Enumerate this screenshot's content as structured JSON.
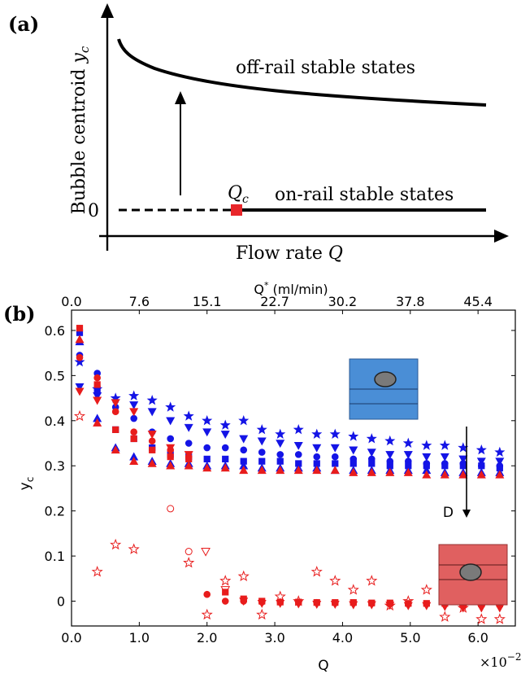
{
  "chart_data": [
    {
      "type": "line",
      "panel_label": "(a)",
      "xlabel": "Flow rate",
      "xlabel_symbol": "Q",
      "ylabel": "Bubble centroid",
      "ylabel_symbol": "y",
      "ylabel_subscript": "c",
      "y_zero_label": "0",
      "critical_label": "Q",
      "critical_subscript": "c",
      "annotations": [
        "off-rail stable states",
        "on-rail stable states"
      ],
      "colors": {
        "marker": "#e8262a",
        "line": "#000000"
      }
    },
    {
      "type": "scatter",
      "panel_label": "(b)",
      "xlabel": "Q",
      "x_multiplier": "×10",
      "x_multiplier_exp": "−2",
      "ylabel": "y",
      "ylabel_subscript": "c",
      "top_xlabel": "Q",
      "top_xlabel_sup": "*",
      "top_xlabel_unit": "(ml/min)",
      "x_ticks": [
        "0.0",
        "1.0",
        "2.0",
        "3.0",
        "4.0",
        "5.0",
        "6.0"
      ],
      "x_tick_values": [
        0,
        1,
        2,
        3,
        4,
        5,
        6
      ],
      "top_ticks": [
        "0.0",
        "7.6",
        "15.1",
        "22.7",
        "30.2",
        "37.8",
        "45.4"
      ],
      "top_tick_values": [
        0,
        1,
        2,
        3,
        4,
        5,
        6
      ],
      "y_ticks": [
        "0",
        "0.1",
        "0.2",
        "0.3",
        "0.4",
        "0.5",
        "0.6"
      ],
      "y_tick_values": [
        0,
        0.1,
        0.2,
        0.3,
        0.4,
        0.5,
        0.6
      ],
      "xlim": [
        0,
        6.55
      ],
      "ylim": [
        -0.055,
        0.645
      ],
      "arrow_label": "D",
      "colors": {
        "blue": "#1414e6",
        "red": "#e81c1c",
        "inset_blue": "#4a8ed6",
        "inset_red": "#e06060"
      },
      "series": [
        {
          "marker": "star",
          "color": "blue",
          "filled": true,
          "x": [
            0.12,
            0.38,
            0.65,
            0.92,
            1.19,
            1.46,
            1.73,
            2.0,
            2.27,
            2.54,
            2.81,
            3.08,
            3.35,
            3.62,
            3.89,
            4.16,
            4.43,
            4.7,
            4.97,
            5.24,
            5.51,
            5.78,
            6.05,
            6.32
          ],
          "y": [
            0.53,
            0.47,
            0.45,
            0.455,
            0.445,
            0.43,
            0.41,
            0.4,
            0.39,
            0.4,
            0.38,
            0.37,
            0.38,
            0.37,
            0.37,
            0.365,
            0.36,
            0.355,
            0.35,
            0.345,
            0.345,
            0.34,
            0.335,
            0.33
          ]
        },
        {
          "marker": "triangle-down",
          "color": "blue",
          "filled": true,
          "x": [
            0.12,
            0.38,
            0.65,
            0.92,
            1.19,
            1.46,
            1.73,
            2.0,
            2.27,
            2.54,
            2.81,
            3.08,
            3.35,
            3.62,
            3.89,
            4.16,
            4.43,
            4.7,
            4.97,
            5.24,
            5.51,
            5.78,
            6.05,
            6.32
          ],
          "y": [
            0.475,
            0.455,
            0.44,
            0.435,
            0.42,
            0.4,
            0.385,
            0.375,
            0.37,
            0.36,
            0.355,
            0.35,
            0.345,
            0.34,
            0.34,
            0.335,
            0.33,
            0.325,
            0.325,
            0.32,
            0.32,
            0.315,
            0.31,
            0.31
          ]
        },
        {
          "marker": "circle",
          "color": "blue",
          "filled": true,
          "x": [
            0.12,
            0.38,
            0.65,
            0.92,
            1.19,
            1.46,
            1.73,
            2.0,
            2.27,
            2.54,
            2.81,
            3.08,
            3.35,
            3.62,
            3.89,
            4.16,
            4.43,
            4.7,
            4.97,
            5.24,
            5.51,
            5.78,
            6.05,
            6.32
          ],
          "y": [
            0.545,
            0.505,
            0.43,
            0.405,
            0.375,
            0.36,
            0.35,
            0.34,
            0.34,
            0.335,
            0.33,
            0.325,
            0.325,
            0.32,
            0.32,
            0.315,
            0.315,
            0.31,
            0.31,
            0.305,
            0.305,
            0.305,
            0.3,
            0.3
          ]
        },
        {
          "marker": "square",
          "color": "blue",
          "filled": true,
          "x": [
            0.12,
            0.38,
            0.65,
            0.92,
            1.19,
            1.46,
            1.73,
            2.0,
            2.27,
            2.54,
            2.81,
            3.08,
            3.35,
            3.62,
            3.89,
            4.16,
            4.43,
            4.7,
            4.97,
            5.24,
            5.51,
            5.78,
            6.05,
            6.32
          ],
          "y": [
            0.595,
            0.47,
            0.38,
            0.36,
            0.34,
            0.325,
            0.32,
            0.315,
            0.315,
            0.31,
            0.31,
            0.31,
            0.305,
            0.305,
            0.305,
            0.305,
            0.305,
            0.3,
            0.3,
            0.3,
            0.3,
            0.3,
            0.3,
            0.295
          ]
        },
        {
          "marker": "triangle-up",
          "color": "blue",
          "filled": true,
          "x": [
            0.12,
            0.38,
            0.65,
            0.92,
            1.19,
            1.46,
            1.73,
            2.0,
            2.27,
            2.54,
            2.81,
            3.08,
            3.35,
            3.62,
            3.89,
            4.16,
            4.43,
            4.7,
            4.97,
            5.24,
            5.51,
            5.78,
            6.05,
            6.32
          ],
          "y": [
            0.575,
            0.405,
            0.34,
            0.32,
            0.31,
            0.305,
            0.305,
            0.3,
            0.3,
            0.3,
            0.295,
            0.295,
            0.295,
            0.295,
            0.29,
            0.29,
            0.29,
            0.29,
            0.29,
            0.29,
            0.285,
            0.285,
            0.285,
            0.285
          ]
        },
        {
          "marker": "triangle-down",
          "color": "red",
          "filled": true,
          "x": [
            0.12,
            0.38,
            0.65,
            0.92,
            1.19,
            1.46,
            1.73
          ],
          "y": [
            0.465,
            0.445,
            0.44,
            0.42,
            0.37,
            0.34,
            0.325
          ]
        },
        {
          "marker": "circle",
          "color": "red",
          "filled": true,
          "x": [
            0.12,
            0.38,
            0.65,
            0.92,
            1.19,
            1.46,
            1.73
          ],
          "y": [
            0.54,
            0.495,
            0.42,
            0.375,
            0.355,
            0.335,
            0.32
          ]
        },
        {
          "marker": "square",
          "color": "red",
          "filled": true,
          "x": [
            0.12,
            0.38,
            0.65,
            0.92,
            1.19,
            1.46,
            1.73
          ],
          "y": [
            0.605,
            0.48,
            0.38,
            0.36,
            0.335,
            0.32,
            0.315
          ]
        },
        {
          "marker": "triangle-up",
          "color": "red",
          "filled": true,
          "x": [
            0.12,
            0.38,
            0.65,
            0.92,
            1.19,
            1.46,
            1.73,
            2.0,
            2.27,
            2.54,
            2.81,
            3.08,
            3.35,
            3.62,
            3.89,
            4.16,
            4.43,
            4.7,
            4.97,
            5.24,
            5.51,
            5.78,
            6.05,
            6.32
          ],
          "y": [
            0.58,
            0.395,
            0.335,
            0.31,
            0.305,
            0.3,
            0.3,
            0.295,
            0.295,
            0.29,
            0.29,
            0.29,
            0.29,
            0.29,
            0.29,
            0.285,
            0.285,
            0.285,
            0.285,
            0.28,
            0.28,
            0.28,
            0.28,
            0.28
          ]
        },
        {
          "marker": "circle",
          "color": "red",
          "filled": true,
          "x": [
            2.0,
            2.27,
            2.54,
            2.81,
            3.08,
            3.35,
            3.62,
            3.89,
            4.16,
            4.43,
            4.7,
            4.97,
            5.24,
            5.51,
            5.78,
            6.05,
            6.32
          ],
          "y": [
            0.015,
            0.0,
            0.0,
            -0.002,
            -0.002,
            -0.003,
            -0.003,
            -0.004,
            -0.004,
            -0.005,
            -0.005,
            -0.006,
            -0.006,
            -0.007,
            -0.008,
            -0.008,
            -0.008
          ]
        },
        {
          "marker": "square",
          "color": "red",
          "filled": true,
          "x": [
            2.27,
            2.54,
            2.81,
            3.08,
            3.35,
            3.62,
            3.89,
            4.16,
            4.43,
            4.7,
            4.97,
            5.24,
            5.51,
            5.78,
            6.05,
            6.32
          ],
          "y": [
            0.02,
            0.005,
            0.0,
            -0.002,
            -0.002,
            -0.003,
            -0.003,
            -0.003,
            -0.004,
            -0.004,
            -0.005,
            -0.005,
            -0.005,
            -0.006,
            -0.006,
            -0.006
          ]
        },
        {
          "marker": "triangle-down",
          "color": "red",
          "filled": true,
          "x": [
            2.54,
            2.81,
            3.08,
            3.35,
            3.62,
            3.89,
            4.16,
            4.43,
            4.7,
            4.97,
            5.24,
            5.51,
            5.78,
            6.05,
            6.32
          ],
          "y": [
            0.0,
            -0.005,
            -0.005,
            -0.006,
            -0.007,
            -0.007,
            -0.008,
            -0.008,
            -0.009,
            -0.01,
            -0.01,
            -0.012,
            -0.015,
            -0.015,
            -0.015
          ]
        },
        {
          "marker": "star",
          "color": "red",
          "filled": false,
          "x": [
            0.12,
            0.38,
            0.65,
            0.92,
            1.73,
            2.0,
            2.27,
            2.54,
            2.81,
            3.08,
            3.35,
            3.62,
            3.89,
            4.16,
            4.43,
            4.7,
            4.97,
            5.24,
            5.51,
            5.78,
            6.05,
            6.32
          ],
          "y": [
            0.41,
            0.065,
            0.125,
            0.115,
            0.085,
            -0.03,
            0.045,
            0.055,
            -0.03,
            0.01,
            0.0,
            0.065,
            0.045,
            0.025,
            0.045,
            -0.01,
            0.0,
            0.025,
            -0.035,
            -0.015,
            -0.04,
            -0.04
          ]
        },
        {
          "marker": "circle",
          "color": "red",
          "filled": false,
          "x": [
            1.46,
            1.73
          ],
          "y": [
            0.205,
            0.11
          ]
        },
        {
          "marker": "triangle-down",
          "color": "red",
          "filled": false,
          "x": [
            1.98,
            2.27
          ],
          "y": [
            0.11,
            0.025
          ]
        }
      ]
    }
  ]
}
